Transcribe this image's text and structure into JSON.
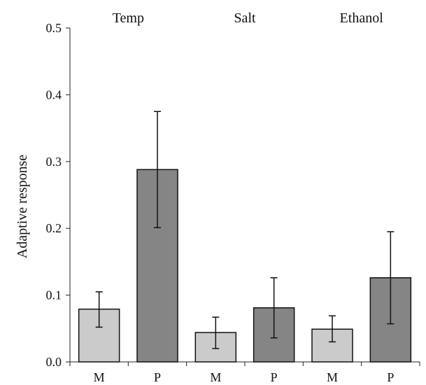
{
  "chart_data": {
    "type": "bar",
    "ylabel": "Adaptive response",
    "xlabel": "",
    "ylim": [
      0,
      0.5
    ],
    "yticks": [
      "0.0",
      "0.1",
      "0.2",
      "0.3",
      "0.4",
      "0.5"
    ],
    "ytick_values": [
      0,
      0.1,
      0.2,
      0.3,
      0.4,
      0.5
    ],
    "groups": [
      "Temp",
      "Salt",
      "Ethanol"
    ],
    "categories": [
      "M",
      "P",
      "M",
      "P",
      "M",
      "P"
    ],
    "values": [
      0.079,
      0.288,
      0.044,
      0.081,
      0.049,
      0.126
    ],
    "errors": [
      [
        0.052,
        0.105
      ],
      [
        0.201,
        0.375
      ],
      [
        0.02,
        0.067
      ],
      [
        0.036,
        0.126
      ],
      [
        0.03,
        0.069
      ],
      [
        0.057,
        0.195
      ]
    ],
    "colors": {
      "M": "#cbcbcb",
      "P": "#858585"
    },
    "grid": false,
    "legend": "none"
  }
}
